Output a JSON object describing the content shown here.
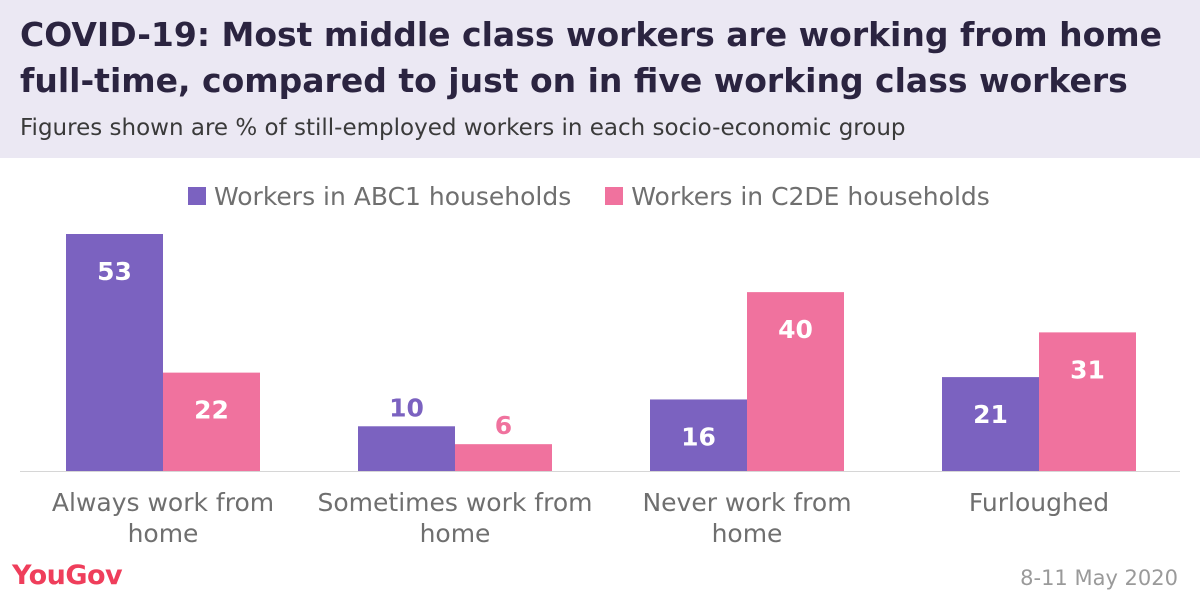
{
  "chart_data": {
    "type": "bar",
    "title": "COVID-19: Most middle class workers are working from home full-time, compared to just on in five working class workers",
    "subtitle": "Figures shown are % of still-employed workers in each socio-economic group",
    "categories": [
      [
        "Always work from",
        "home"
      ],
      [
        "Sometimes work from",
        "home"
      ],
      [
        "Never work from",
        "home"
      ],
      [
        "Furloughed"
      ]
    ],
    "series": [
      {
        "name": "Workers in ABC1 households",
        "color": "#7b62c0",
        "values": [
          53,
          10,
          16,
          21
        ]
      },
      {
        "name": "Workers in C2DE households",
        "color": "#f0729e",
        "values": [
          22,
          6,
          40,
          31
        ]
      }
    ],
    "ylim": [
      0,
      53
    ],
    "legend_position": "top",
    "grid": false
  },
  "footer": {
    "brand": "YouGov",
    "date": "8-11 May 2020"
  }
}
